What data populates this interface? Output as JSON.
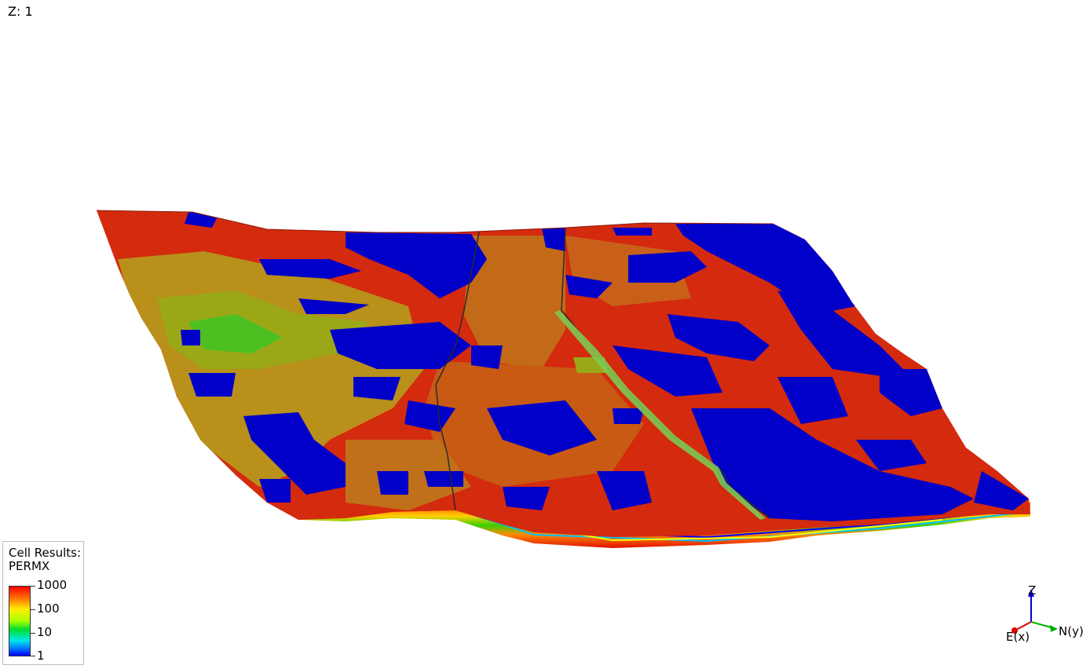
{
  "z_scale": "Z: 1",
  "legend": {
    "title_line1": "Cell Results:",
    "title_line2": "PERMX",
    "ticks": [
      "1000",
      "100",
      "10",
      "1"
    ]
  },
  "axes": {
    "z": "Z",
    "x": "E(x)",
    "y": "N(y)"
  },
  "colors": {
    "high": "#d42a0e",
    "mid": "#a8a018",
    "low": "#0000c8",
    "green": "#3ac81e"
  }
}
